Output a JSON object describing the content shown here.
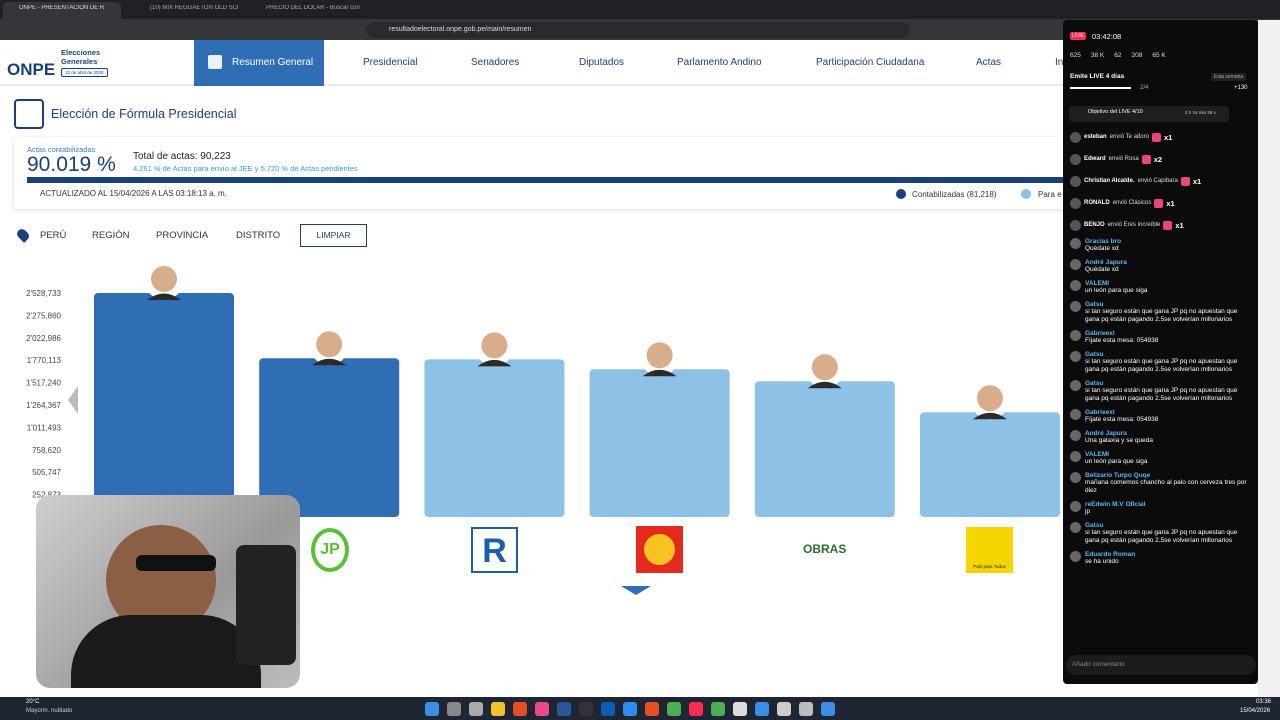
{
  "browser": {
    "tabs": [
      "ONPE - PRESENTACIÓN DE RES",
      "(10) MIX REGGAETON OLD SCH",
      "PRECIO DEL DOLAR - Buscar con Go"
    ],
    "url": "resultadoelectoral.onpe.gob.pe/main/resumen"
  },
  "header": {
    "logo": "ONPE",
    "brand": "Elecciones Generales",
    "date": "12 de abril de 2026",
    "nav": [
      "Resumen General",
      "Presidencial",
      "Senadores",
      "Diputados",
      "Parlamento Andino",
      "Participación Ciudadana",
      "Actas",
      "In"
    ]
  },
  "summary": {
    "title": "Elección de Fórmula Presidencial",
    "actas_label": "Actas contabilizadas",
    "actas_pct": "90.019 %",
    "total": "Total de actas: 90,223",
    "note": "4.261 % de Actas para envío al JEE y 5.720 % de Actas pendientes",
    "updated": "ACTUALIZADO AL 15/04/2026 A LAS 03:18:13 a. m.",
    "legend": [
      "Contabilizadas (81,218)",
      "Para e"
    ]
  },
  "filters": {
    "items": [
      "PERÚ",
      "REGIÓN",
      "PROVINCIA",
      "DISTRITO"
    ],
    "clear": "LIMPIAR"
  },
  "chart": {
    "type": "bar",
    "ylim": [
      0,
      2528733
    ],
    "yticks": [
      {
        "value": 252873,
        "label": "252,873"
      },
      {
        "value": 505747,
        "label": "505,747"
      },
      {
        "value": 758620,
        "label": "758,620"
      },
      {
        "value": 1011493,
        "label": "1'011,493"
      },
      {
        "value": 1264367,
        "label": "1'264,367"
      },
      {
        "value": 1517240,
        "label": "1'517,240"
      },
      {
        "value": 1770113,
        "label": "1'770,113"
      },
      {
        "value": 2022986,
        "label": "2'022,986"
      },
      {
        "value": 2275860,
        "label": "2'275,860"
      },
      {
        "value": 2528733,
        "label": "2'528,733"
      }
    ],
    "values": [
      2528733,
      1791700,
      1780000,
      1668000,
      1532600,
      1183200
    ],
    "colors": [
      "#2f6db4",
      "#2f6db4",
      "#8ec1e6",
      "#8ec1e6",
      "#8ec1e6",
      "#8ec1e6"
    ],
    "logos": [
      "JP",
      "R",
      "OBRAS",
      "País para Todos"
    ]
  },
  "live": {
    "badge": "LIVE",
    "time": "03:42:08",
    "stats": [
      "625",
      "38 K",
      "62",
      "208",
      "65 K"
    ],
    "streak": "Emite LIVE 4 días",
    "week": "Esta semana",
    "progress": "2/4",
    "bonus": "+130",
    "goal": "Objetivo del LIVE 4/10",
    "goal_time": "2 h 16 min 36 s",
    "gifts": [
      {
        "user": "esteban",
        "text": "envió Te adoro",
        "count": "x1"
      },
      {
        "user": "Edward",
        "text": "envió Rosa",
        "count": "x2"
      },
      {
        "user": "Christian Alcalde.",
        "text": "envió Capibara",
        "count": "x1"
      },
      {
        "user": "RONALD",
        "text": "envió Clásicos",
        "count": "x1"
      },
      {
        "user": "BENJO",
        "text": "envió Eres increíble",
        "count": "x1"
      }
    ],
    "chat": [
      {
        "user": "Gracias bro",
        "text": "Quédate xd"
      },
      {
        "user": "André Japura",
        "text": "Quédate xd"
      },
      {
        "user": "VALEMI",
        "text": "un león para que siga"
      },
      {
        "user": "Gatsu",
        "text": "si tan seguro están que gana JP pq no apuestan que gana pq están pagando 2.5se volverían millonarios"
      },
      {
        "user": "Gabrieexl",
        "text": "Fíjate esta mesa: 054938"
      },
      {
        "user": "Gatsu",
        "text": "si tan seguro están que gana JP pq no apuestan que gana pq están pagando 2.5se volverían millonarios"
      },
      {
        "user": "Gatsu",
        "text": "si tan seguro están que gana JP pq no apuestan que gana pq están pagando 2.5se volverían millonarios"
      },
      {
        "user": "Gabrieexl",
        "text": "Fíjate esta mesa: 054938"
      },
      {
        "user": "André Japura",
        "text": "Una galaxia y se queda"
      },
      {
        "user": "VALEMI",
        "text": "un león para que siga"
      },
      {
        "user": "Belizario Turpo Quqe",
        "text": "mañana comemos chancho al palo con cerveza tres por diez"
      },
      {
        "user": "reEdwin M.V Oficial",
        "text": "jp"
      },
      {
        "user": "Gatsu",
        "text": "si tan seguro están que gana JP pq no apuestan que gana pq están pagando 2.5se volverían millonarios"
      },
      {
        "user": "Eduardo Roman",
        "text": "se ha unido"
      }
    ],
    "input": "Añadir comentario"
  },
  "taskbar": {
    "temp": "20°C",
    "weather": "Mayorm. nublado",
    "clock": "03:36",
    "date": "15/04/2026"
  }
}
